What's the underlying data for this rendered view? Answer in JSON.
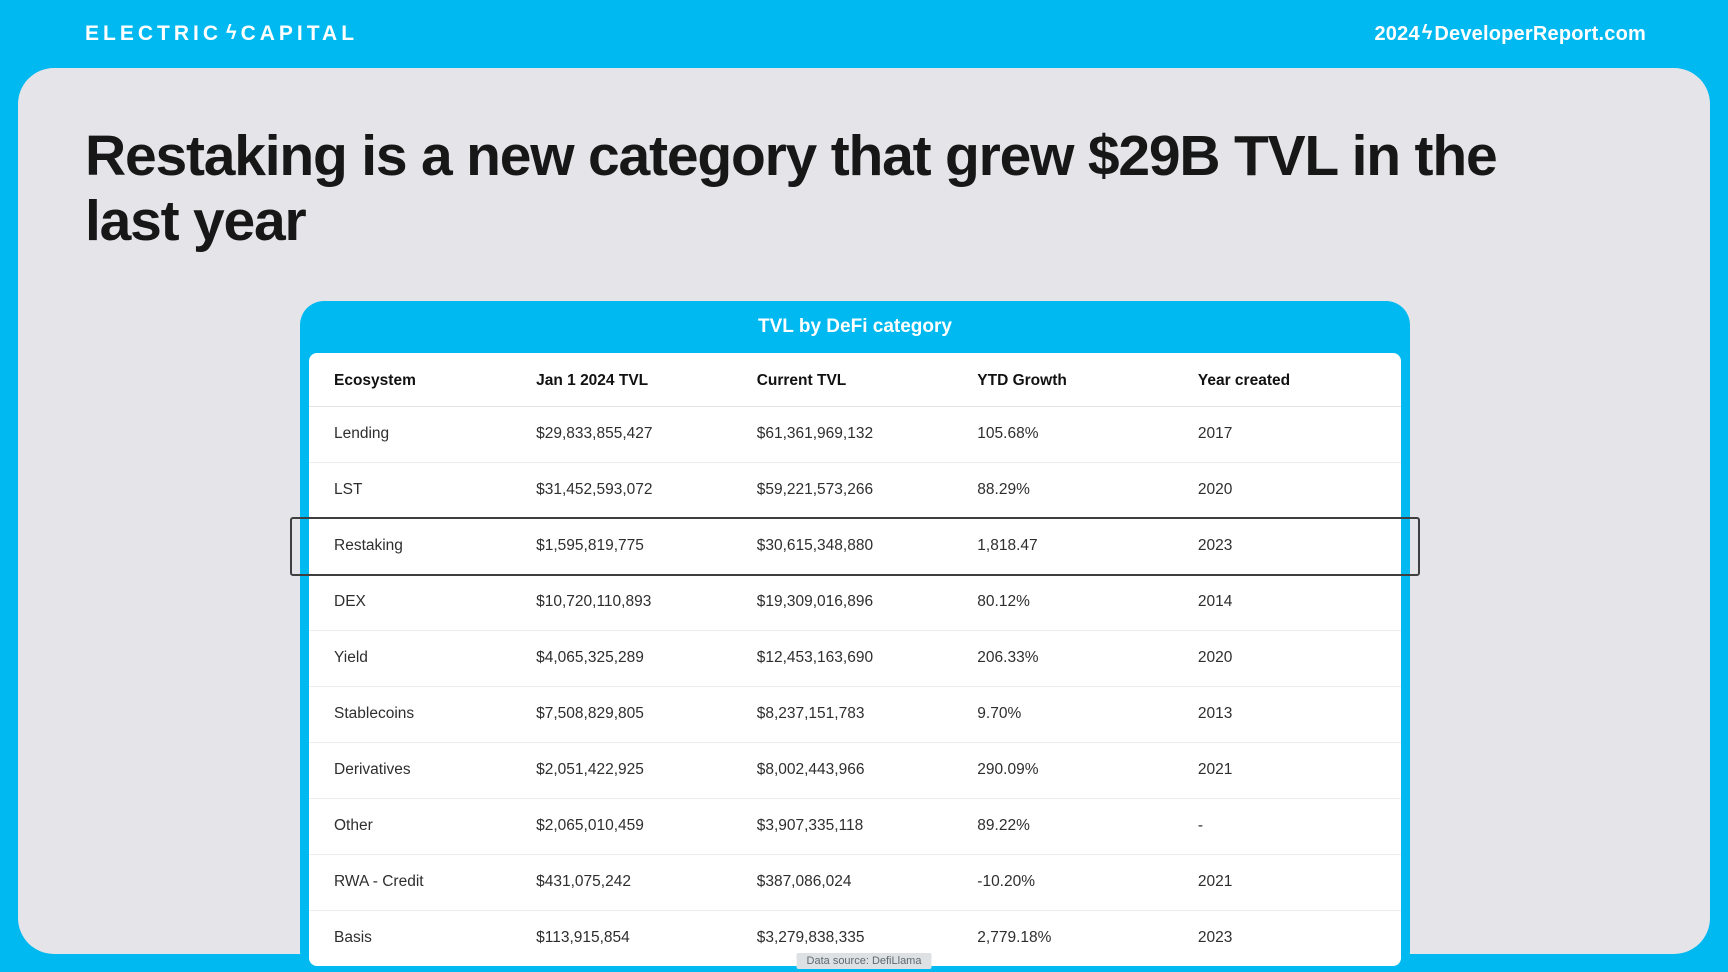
{
  "colors": {
    "accent_cyan": "#00b9f0",
    "card_gray": "#e5e4e9",
    "highlight_border": "#3f3f3f"
  },
  "top_bar": {
    "logo_left": "ELECTRIC",
    "logo_right": "CAPITAL",
    "bolt_icon": "ϟ",
    "site_year": "2024",
    "site_domain": "DeveloperReport.com"
  },
  "slide": {
    "title": "Restaking is a new category that grew $29B TVL in the last year"
  },
  "table": {
    "title": "TVL by DeFi category",
    "source": "Data source: DefiLlama"
  },
  "chart_data": {
    "type": "table",
    "title": "TVL by DeFi category",
    "columns": [
      "Ecosystem",
      "Jan 1 2024 TVL",
      "Current TVL",
      "YTD Growth",
      "Year created"
    ],
    "highlighted_row_index": 2,
    "rows": [
      [
        "Lending",
        "$29,833,855,427",
        "$61,361,969,132",
        "105.68%",
        "2017"
      ],
      [
        "LST",
        "$31,452,593,072",
        "$59,221,573,266",
        "88.29%",
        "2020"
      ],
      [
        "Restaking",
        "$1,595,819,775",
        "$30,615,348,880",
        "1,818.47",
        "2023"
      ],
      [
        "DEX",
        "$10,720,110,893",
        "$19,309,016,896",
        "80.12%",
        "2014"
      ],
      [
        "Yield",
        "$4,065,325,289",
        "$12,453,163,690",
        "206.33%",
        "2020"
      ],
      [
        "Stablecoins",
        "$7,508,829,805",
        "$8,237,151,783",
        "9.70%",
        "2013"
      ],
      [
        "Derivatives",
        "$2,051,422,925",
        "$8,002,443,966",
        "290.09%",
        "2021"
      ],
      [
        "Other",
        "$2,065,010,459",
        "$3,907,335,118",
        "89.22%",
        "-"
      ],
      [
        "RWA - Credit",
        "$431,075,242",
        "$387,086,024",
        "-10.20%",
        "2021"
      ],
      [
        "Basis",
        "$113,915,854",
        "$3,279,838,335",
        "2,779.18%",
        "2023"
      ]
    ]
  }
}
